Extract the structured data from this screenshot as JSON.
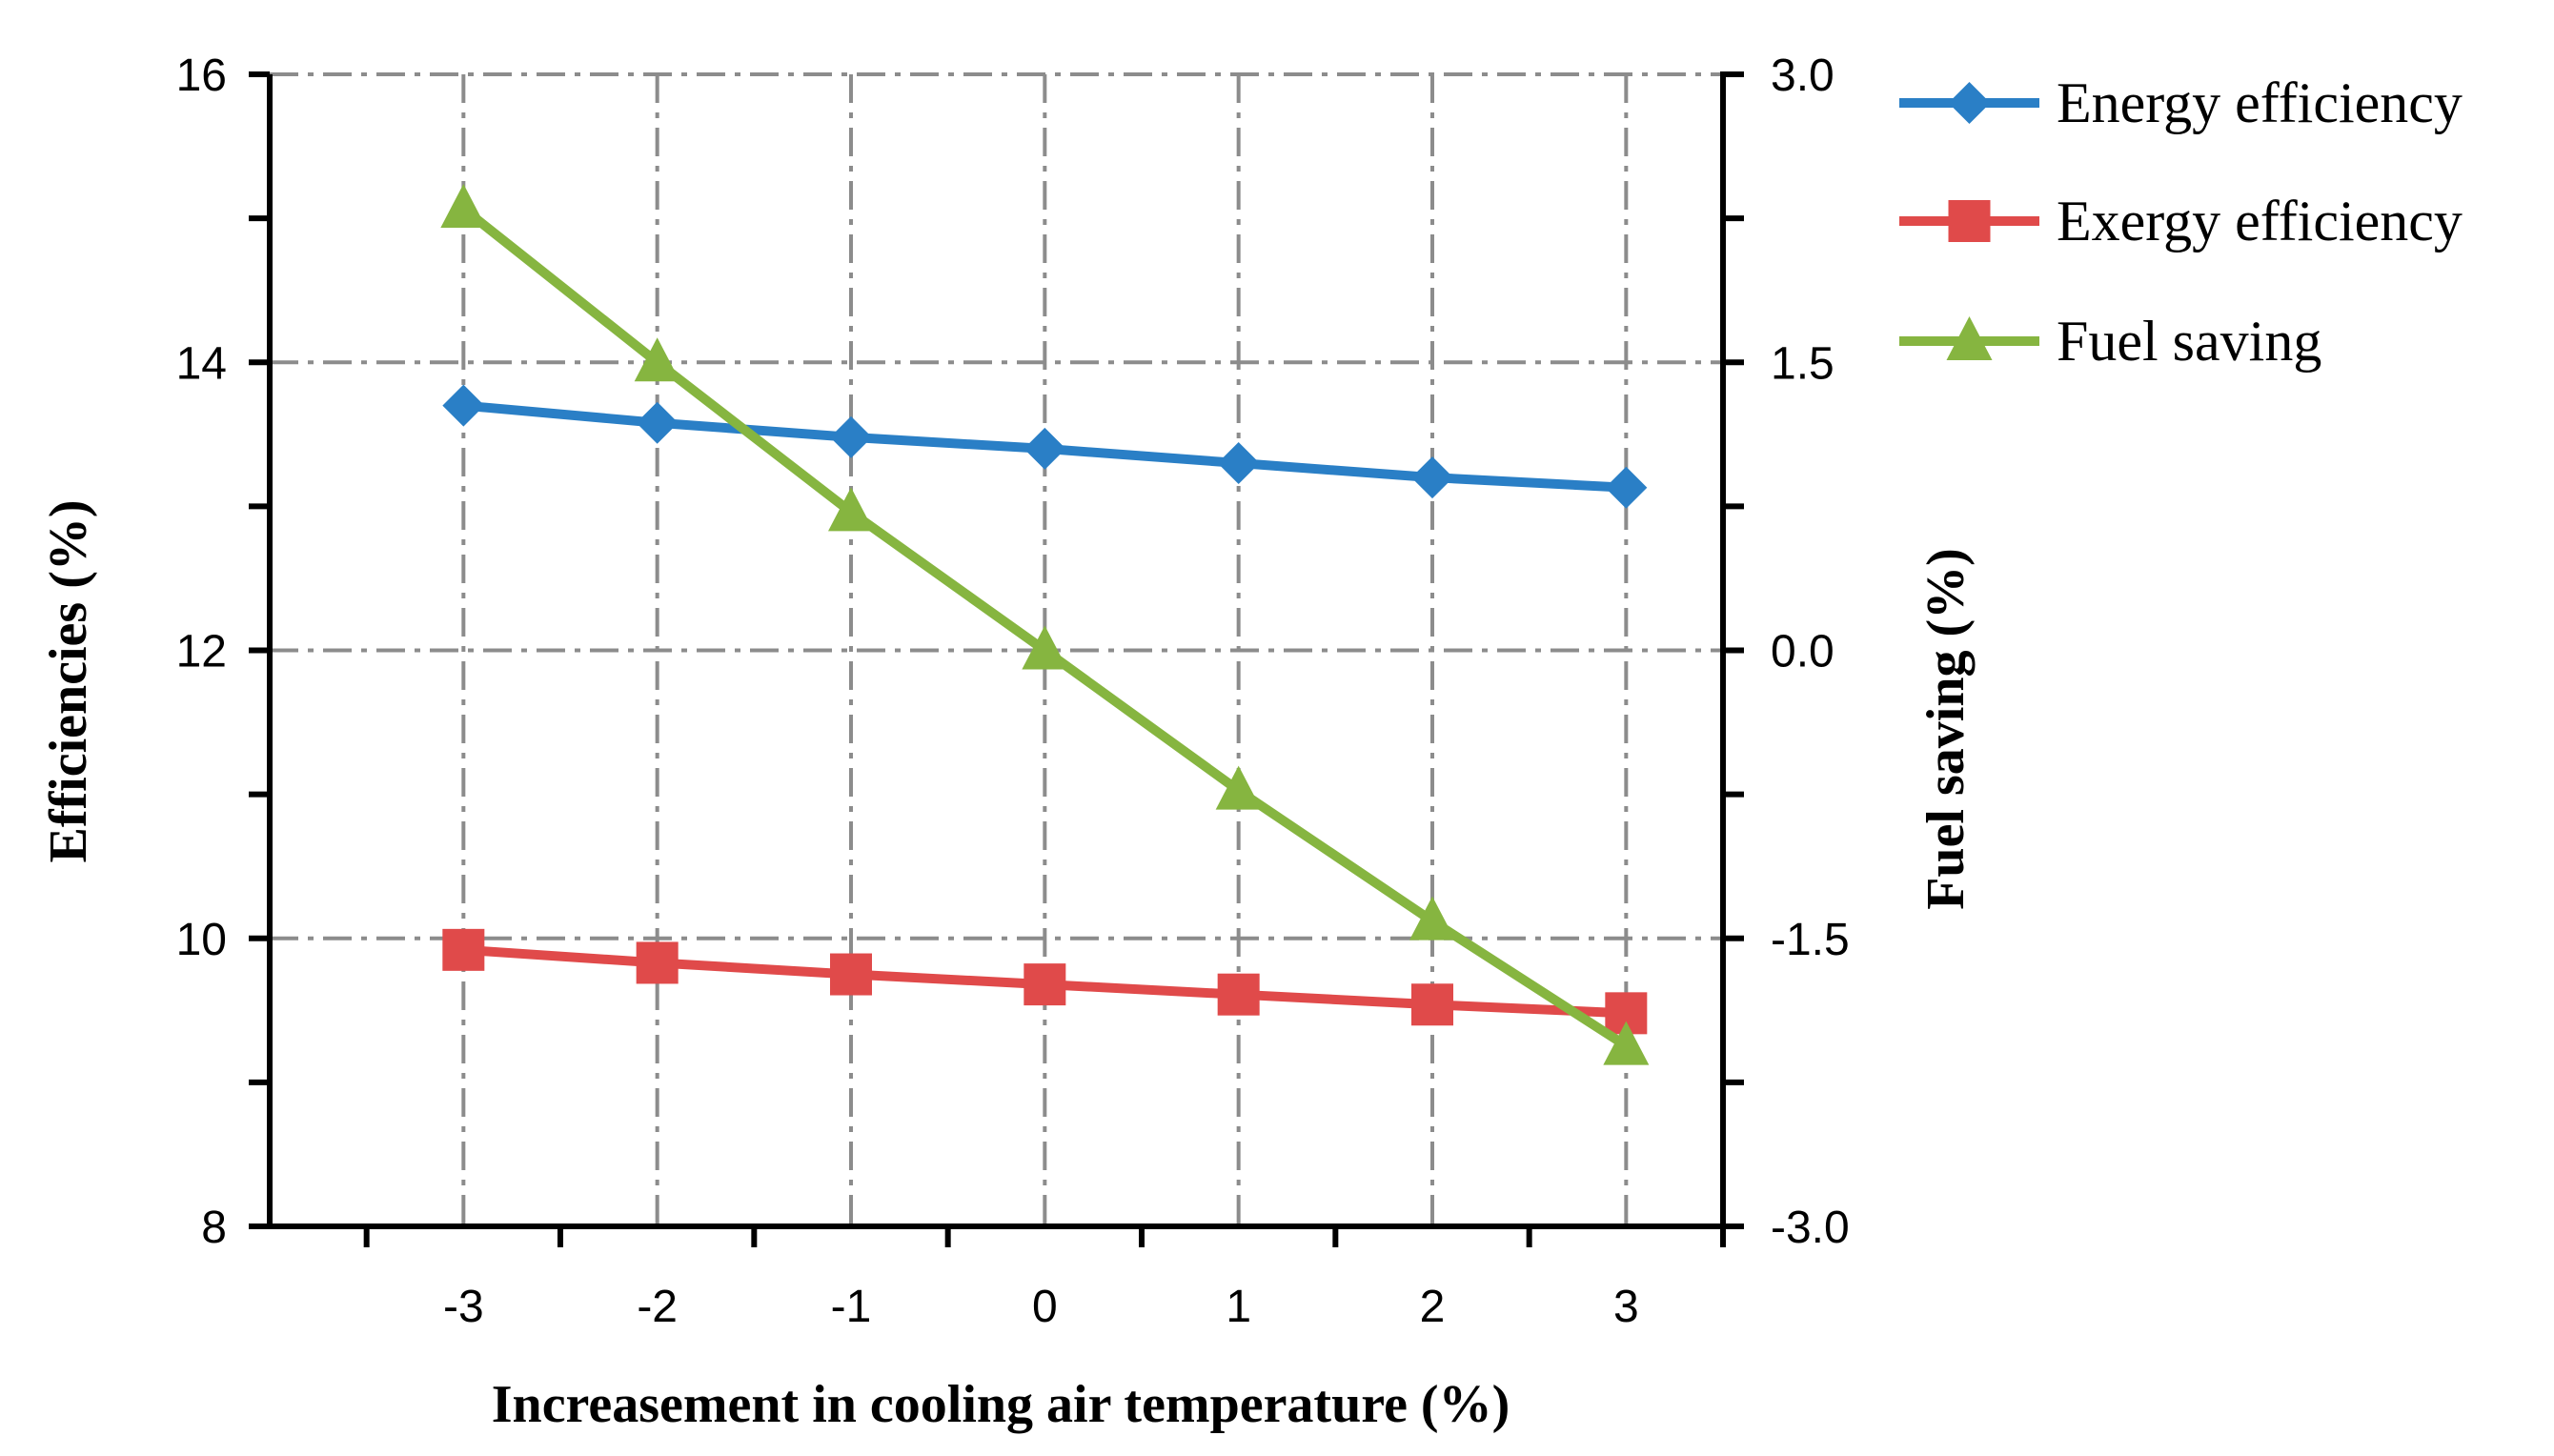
{
  "chart_data": {
    "type": "line",
    "title": "",
    "xlabel": "Increasement in cooling air temperature  (%)",
    "ylabel": "Efficiencies (%)",
    "y2label": "Fuel saving  (%)",
    "x": [
      -3,
      -2,
      -1,
      0,
      1,
      2,
      3
    ],
    "x_tick_labels": [
      "-3",
      "-2",
      "-1",
      "0",
      "1",
      "2",
      "3"
    ],
    "xlim": [
      -4,
      3.5
    ],
    "ylim": [
      8,
      16
    ],
    "y_tick_labels": [
      "8",
      "10",
      "12",
      "14",
      "16"
    ],
    "y2lim": [
      -3.0,
      3.0
    ],
    "y2_tick_labels": [
      "-3.0",
      "-1.5",
      "0.0",
      "1.5",
      "3.0"
    ],
    "grid": true,
    "legend_position": "top-right outside",
    "series": [
      {
        "name": "Energy efficiency",
        "axis": "left",
        "marker": "diamond",
        "color": "#2a7fc6",
        "values": [
          13.7,
          13.58,
          13.48,
          13.4,
          13.3,
          13.2,
          13.13
        ]
      },
      {
        "name": "Exergy efficiency",
        "axis": "left",
        "marker": "square",
        "color": "#e04a4a",
        "values": [
          9.92,
          9.83,
          9.75,
          9.68,
          9.61,
          9.54,
          9.48
        ]
      },
      {
        "name": "Fuel saving",
        "axis": "right",
        "marker": "triangle",
        "color": "#86b540",
        "values": [
          2.3,
          1.5,
          0.72,
          0.0,
          -0.73,
          -1.41,
          -2.06
        ]
      }
    ]
  }
}
